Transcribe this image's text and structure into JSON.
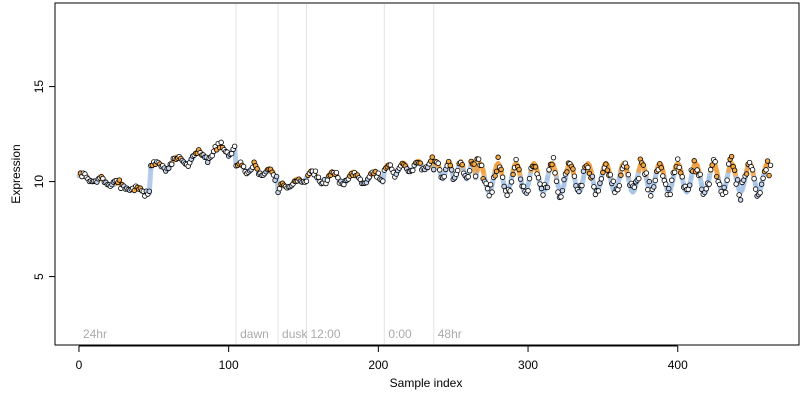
{
  "chart_data": {
    "type": "scatter",
    "title": "",
    "xlabel": "Sample index",
    "ylabel": "Expression",
    "xlim": [
      -16,
      481
    ],
    "ylim": [
      1.4,
      19.4
    ],
    "xticks": [
      0,
      100,
      200,
      300,
      400
    ],
    "yticks": [
      5,
      10,
      15
    ],
    "grid": false,
    "legend": "none",
    "colors": {
      "axis": "#000000",
      "marker_edge": "#000000",
      "divider": "#e3e3e3",
      "region_label": "#aaaaaa",
      "smooth_blue": "#a8c4e6",
      "smooth_orange": "#f0a040",
      "point_fill_light": "#c7d6f0",
      "point_fill_orange": "#f5a742",
      "point_fill_white": "#ffffff"
    },
    "regions": [
      {
        "label": "24hr",
        "start": 0
      },
      {
        "label": "dawn",
        "start": 105
      },
      {
        "label": "dusk",
        "start": 133
      },
      {
        "label": "12:00",
        "start": 152
      },
      {
        "label": "0:00",
        "start": 204
      },
      {
        "label": "48hr",
        "start": 237
      }
    ],
    "dividers": [
      105,
      133,
      152,
      204,
      237
    ],
    "trend": [
      {
        "start": 0,
        "end": 48,
        "level": 10.3,
        "slope": -0.018,
        "amp": 0.12,
        "period": 12
      },
      {
        "start": 48,
        "end": 105,
        "level": 10.7,
        "slope": 0.02,
        "amp": 0.25,
        "period": 14
      },
      {
        "start": 105,
        "end": 133,
        "level": 10.8,
        "slope": -0.015,
        "amp": 0.2,
        "period": 10
      },
      {
        "start": 133,
        "end": 152,
        "level": 9.6,
        "slope": 0.03,
        "amp": 0.15,
        "period": 10
      },
      {
        "start": 152,
        "end": 204,
        "level": 10.2,
        "slope": 0.0,
        "amp": 0.3,
        "period": 14
      },
      {
        "start": 204,
        "end": 237,
        "level": 10.6,
        "slope": 0.01,
        "amp": 0.25,
        "period": 10
      },
      {
        "start": 237,
        "end": 265,
        "level": 10.6,
        "slope": 0.0,
        "amp": 0.45,
        "period": 8
      },
      {
        "start": 265,
        "end": 462,
        "level": 10.2,
        "slope": 0.0,
        "amp": 0.75,
        "period": 12
      }
    ],
    "n_points": 462,
    "seed": 7
  }
}
